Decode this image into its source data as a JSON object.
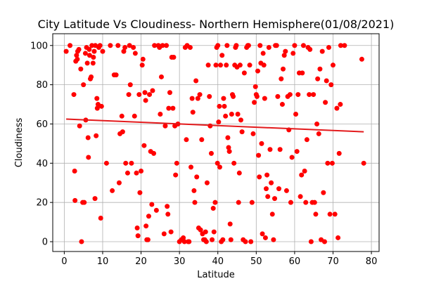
{
  "chart_data": {
    "type": "scatter",
    "title": "City Latitude Vs Cloudiness- Northern Hemisphere(01/08/2021)",
    "xlabel": "Latitude",
    "ylabel": "Cloudiness",
    "xlim": [
      -3,
      82
    ],
    "ylim": [
      -5,
      106
    ],
    "xticks": [
      0,
      10,
      20,
      30,
      40,
      50,
      60,
      70,
      80
    ],
    "yticks": [
      0,
      20,
      40,
      60,
      80,
      100
    ],
    "grid": true,
    "legend": "none",
    "colors": {
      "points": "#ff0000",
      "regression": "#e31a1c",
      "grid": "#b0b0b0"
    },
    "regression": {
      "x": [
        0.5,
        78
      ],
      "y": [
        62.5,
        56
      ]
    },
    "points": [
      [
        0.5,
        97
      ],
      [
        1.5,
        100
      ],
      [
        2.5,
        75
      ],
      [
        2.7,
        36
      ],
      [
        2.8,
        21
      ],
      [
        3.0,
        92
      ],
      [
        3.2,
        95
      ],
      [
        3.4,
        93
      ],
      [
        3.5,
        97
      ],
      [
        3.8,
        98
      ],
      [
        4.0,
        59
      ],
      [
        4.3,
        88
      ],
      [
        4.5,
        0
      ],
      [
        4.8,
        20
      ],
      [
        5.0,
        80
      ],
      [
        5.2,
        20
      ],
      [
        5.5,
        96
      ],
      [
        5.6,
        62
      ],
      [
        5.8,
        99
      ],
      [
        6.0,
        91
      ],
      [
        6.2,
        53
      ],
      [
        6.3,
        43
      ],
      [
        6.5,
        98
      ],
      [
        6.6,
        95
      ],
      [
        6.8,
        83
      ],
      [
        7.0,
        84
      ],
      [
        7.2,
        100
      ],
      [
        7.5,
        91
      ],
      [
        7.6,
        94
      ],
      [
        7.8,
        97
      ],
      [
        8.0,
        22
      ],
      [
        8.1,
        100
      ],
      [
        8.3,
        54
      ],
      [
        8.5,
        73
      ],
      [
        8.6,
        68
      ],
      [
        8.8,
        70
      ],
      [
        9.0,
        99
      ],
      [
        9.3,
        100
      ],
      [
        9.5,
        12
      ],
      [
        9.7,
        69
      ],
      [
        10.0,
        97
      ],
      [
        11.0,
        40
      ],
      [
        12.0,
        100
      ],
      [
        12.5,
        26
      ],
      [
        13.0,
        85
      ],
      [
        13.5,
        85
      ],
      [
        14.0,
        100
      ],
      [
        14.3,
        30
      ],
      [
        14.5,
        55
      ],
      [
        15.0,
        64
      ],
      [
        15.2,
        56
      ],
      [
        15.5,
        97
      ],
      [
        15.8,
        99
      ],
      [
        16.0,
        40
      ],
      [
        16.5,
        35
      ],
      [
        16.8,
        75
      ],
      [
        17.0,
        100
      ],
      [
        17.2,
        80
      ],
      [
        17.5,
        40
      ],
      [
        18.0,
        99
      ],
      [
        18.3,
        64
      ],
      [
        18.5,
        96
      ],
      [
        18.8,
        35
      ],
      [
        19.0,
        7
      ],
      [
        19.2,
        3
      ],
      [
        19.5,
        75
      ],
      [
        19.7,
        25
      ],
      [
        20.0,
        36
      ],
      [
        20.3,
        90
      ],
      [
        20.5,
        93
      ],
      [
        20.8,
        49
      ],
      [
        21.0,
        76
      ],
      [
        21.2,
        72
      ],
      [
        21.3,
        8
      ],
      [
        21.5,
        1
      ],
      [
        21.8,
        1
      ],
      [
        22.0,
        13
      ],
      [
        22.2,
        75
      ],
      [
        22.5,
        46
      ],
      [
        22.8,
        19
      ],
      [
        23.0,
        77
      ],
      [
        23.3,
        45
      ],
      [
        23.5,
        100
      ],
      [
        24.0,
        16
      ],
      [
        24.5,
        100
      ],
      [
        24.8,
        99
      ],
      [
        25.0,
        65
      ],
      [
        25.3,
        84
      ],
      [
        25.6,
        100
      ],
      [
        26.0,
        4
      ],
      [
        26.3,
        59
      ],
      [
        26.6,
        100
      ],
      [
        26.8,
        18
      ],
      [
        27.0,
        14
      ],
      [
        27.2,
        68
      ],
      [
        27.5,
        76
      ],
      [
        27.8,
        5
      ],
      [
        28.0,
        94
      ],
      [
        28.3,
        68
      ],
      [
        28.5,
        94
      ],
      [
        28.8,
        59
      ],
      [
        29.0,
        34
      ],
      [
        29.3,
        40
      ],
      [
        29.6,
        60
      ],
      [
        30.0,
        0
      ],
      [
        30.5,
        1
      ],
      [
        31.0,
        2
      ],
      [
        31.3,
        0
      ],
      [
        31.5,
        99
      ],
      [
        31.8,
        52
      ],
      [
        32.0,
        100
      ],
      [
        32.3,
        0
      ],
      [
        32.5,
        0
      ],
      [
        32.8,
        99
      ],
      [
        33.0,
        38
      ],
      [
        33.3,
        73
      ],
      [
        33.5,
        66
      ],
      [
        33.8,
        26
      ],
      [
        34.0,
        20
      ],
      [
        34.3,
        82
      ],
      [
        34.5,
        33
      ],
      [
        34.8,
        73
      ],
      [
        35.0,
        7
      ],
      [
        35.3,
        75
      ],
      [
        35.5,
        6
      ],
      [
        35.8,
        52
      ],
      [
        36.0,
        4
      ],
      [
        36.3,
        1
      ],
      [
        36.6,
        1
      ],
      [
        36.8,
        5
      ],
      [
        37.0,
        0
      ],
      [
        37.2,
        30
      ],
      [
        37.5,
        90
      ],
      [
        37.8,
        74
      ],
      [
        38.0,
        59
      ],
      [
        38.3,
        45
      ],
      [
        38.5,
        1
      ],
      [
        38.8,
        17
      ],
      [
        39.0,
        5
      ],
      [
        39.3,
        20
      ],
      [
        39.5,
        90
      ],
      [
        39.7,
        99
      ],
      [
        39.9,
        40
      ],
      [
        40.0,
        100
      ],
      [
        40.2,
        61
      ],
      [
        40.4,
        69
      ],
      [
        40.5,
        38
      ],
      [
        40.7,
        90
      ],
      [
        40.9,
        0
      ],
      [
        41.1,
        95
      ],
      [
        41.3,
        1
      ],
      [
        41.5,
        73
      ],
      [
        41.7,
        69
      ],
      [
        42.0,
        64
      ],
      [
        42.2,
        90
      ],
      [
        42.4,
        100
      ],
      [
        42.6,
        53
      ],
      [
        42.8,
        48
      ],
      [
        43.0,
        46
      ],
      [
        43.2,
        9
      ],
      [
        43.4,
        1
      ],
      [
        43.6,
        65
      ],
      [
        43.8,
        75
      ],
      [
        44.0,
        74
      ],
      [
        44.2,
        40
      ],
      [
        44.4,
        90
      ],
      [
        44.6,
        99
      ],
      [
        44.8,
        100
      ],
      [
        45.0,
        89
      ],
      [
        45.2,
        65
      ],
      [
        45.4,
        20
      ],
      [
        45.6,
        35
      ],
      [
        45.8,
        90
      ],
      [
        46.0,
        62
      ],
      [
        46.3,
        56
      ],
      [
        46.6,
        1
      ],
      [
        46.9,
        86
      ],
      [
        47.2,
        0
      ],
      [
        47.5,
        99
      ],
      [
        47.8,
        100
      ],
      [
        48.0,
        100
      ],
      [
        48.3,
        90
      ],
      [
        48.6,
        0
      ],
      [
        48.9,
        20
      ],
      [
        49.2,
        55
      ],
      [
        49.5,
        71
      ],
      [
        49.8,
        79
      ],
      [
        50.0,
        75
      ],
      [
        50.2,
        74
      ],
      [
        50.4,
        87
      ],
      [
        50.6,
        44
      ],
      [
        50.8,
        33
      ],
      [
        51.0,
        100
      ],
      [
        51.2,
        91
      ],
      [
        51.4,
        50
      ],
      [
        51.6,
        4
      ],
      [
        51.8,
        96
      ],
      [
        52.0,
        90
      ],
      [
        52.2,
        73
      ],
      [
        52.4,
        2
      ],
      [
        52.6,
        27
      ],
      [
        52.8,
        34
      ],
      [
        53.0,
        23
      ],
      [
        53.3,
        99
      ],
      [
        53.6,
        47
      ],
      [
        53.9,
        30
      ],
      [
        54.2,
        14
      ],
      [
        54.5,
        1
      ],
      [
        54.8,
        22
      ],
      [
        55.0,
        100
      ],
      [
        55.3,
        100
      ],
      [
        55.6,
        74
      ],
      [
        55.9,
        27
      ],
      [
        56.2,
        47
      ],
      [
        56.5,
        83
      ],
      [
        56.8,
        70
      ],
      [
        57.0,
        88
      ],
      [
        57.3,
        95
      ],
      [
        57.6,
        97
      ],
      [
        57.9,
        26
      ],
      [
        58.2,
        74
      ],
      [
        58.5,
        57
      ],
      [
        58.8,
        75
      ],
      [
        59.0,
        20
      ],
      [
        59.3,
        43
      ],
      [
        59.6,
        96
      ],
      [
        60.0,
        100
      ],
      [
        60.3,
        65
      ],
      [
        60.6,
        46
      ],
      [
        60.9,
        75
      ],
      [
        61.2,
        86
      ],
      [
        61.5,
        23
      ],
      [
        61.8,
        34
      ],
      [
        62.0,
        86
      ],
      [
        62.3,
        100
      ],
      [
        62.6,
        36
      ],
      [
        62.9,
        20
      ],
      [
        63.2,
        52
      ],
      [
        63.5,
        99
      ],
      [
        63.8,
        75
      ],
      [
        64.0,
        98
      ],
      [
        64.3,
        0
      ],
      [
        64.6,
        20
      ],
      [
        64.9,
        75
      ],
      [
        65.2,
        20
      ],
      [
        65.5,
        14
      ],
      [
        65.8,
        60
      ],
      [
        66.0,
        83
      ],
      [
        66.3,
        55
      ],
      [
        66.6,
        88
      ],
      [
        66.9,
        1
      ],
      [
        67.2,
        97
      ],
      [
        67.5,
        25
      ],
      [
        67.8,
        0
      ],
      [
        68.0,
        71
      ],
      [
        68.3,
        82
      ],
      [
        68.6,
        40
      ],
      [
        68.9,
        99
      ],
      [
        69.2,
        14
      ],
      [
        69.5,
        80
      ],
      [
        69.8,
        40
      ],
      [
        70.0,
        90
      ],
      [
        70.5,
        14
      ],
      [
        71.0,
        68
      ],
      [
        71.3,
        2
      ],
      [
        71.6,
        45
      ],
      [
        71.9,
        70
      ],
      [
        72.0,
        100
      ],
      [
        73.0,
        100
      ],
      [
        77.5,
        93
      ],
      [
        78.0,
        40
      ]
    ]
  }
}
